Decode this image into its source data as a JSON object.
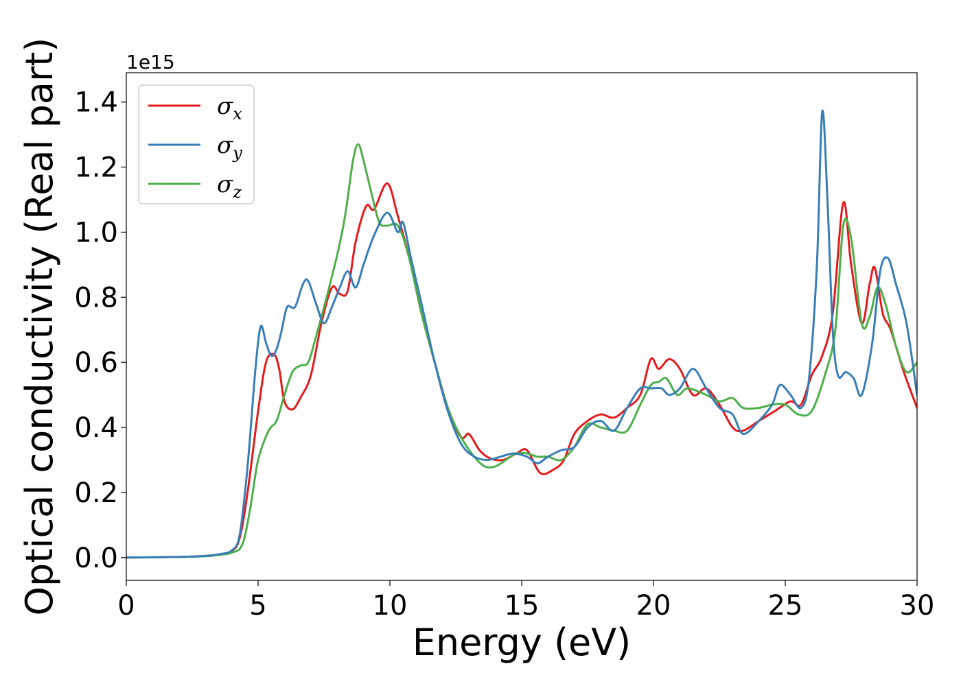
{
  "chart_data": {
    "type": "line",
    "xlabel": "Energy (eV)",
    "ylabel": "Optical conductivity (Real part)",
    "y_offset_text": "1e15",
    "xlim": [
      0,
      30
    ],
    "ylim": [
      -0.07,
      1.49
    ],
    "x_ticks": [
      0,
      5,
      10,
      15,
      20,
      25,
      30
    ],
    "x_tick_labels": [
      "0",
      "5",
      "10",
      "15",
      "20",
      "25",
      "30"
    ],
    "y_ticks": [
      0.0,
      0.2,
      0.4,
      0.6,
      0.8,
      1.0,
      1.2,
      1.4
    ],
    "y_tick_labels": [
      "0.0",
      "0.2",
      "0.4",
      "0.6",
      "0.8",
      "1.0",
      "1.2",
      "1.4"
    ],
    "grid": false,
    "legend_position": "top-left",
    "series": [
      {
        "name": "σx",
        "symbol": "σ",
        "subscript": "x",
        "color": "#e41a1c",
        "x": [
          0,
          2,
          3,
          3.5,
          4,
          4.3,
          4.6,
          5,
          5.3,
          5.6,
          5.8,
          6,
          6.3,
          6.6,
          7,
          7.4,
          7.8,
          8.1,
          8.4,
          8.7,
          9.1,
          9.4,
          9.9,
          10.3,
          10.8,
          11.2,
          11.7,
          12.2,
          12.7,
          13,
          13.4,
          13.8,
          14.3,
          14.8,
          15.2,
          15.7,
          16.2,
          16.6,
          17,
          17.5,
          18,
          18.5,
          19,
          19.5,
          19.9,
          20.2,
          20.6,
          21,
          21.5,
          22,
          22.5,
          23,
          23.4,
          24,
          24.6,
          25.2,
          25.6,
          26,
          26.4,
          26.8,
          27.2,
          27.5,
          27.9,
          28.2,
          28.4,
          28.7,
          29,
          29.5,
          30
        ],
        "y": [
          0,
          0.002,
          0.005,
          0.01,
          0.02,
          0.06,
          0.2,
          0.45,
          0.6,
          0.625,
          0.58,
          0.48,
          0.455,
          0.49,
          0.56,
          0.72,
          0.83,
          0.81,
          0.82,
          0.97,
          1.08,
          1.07,
          1.15,
          1.05,
          0.9,
          0.75,
          0.6,
          0.46,
          0.37,
          0.38,
          0.33,
          0.305,
          0.3,
          0.32,
          0.33,
          0.26,
          0.27,
          0.3,
          0.38,
          0.42,
          0.44,
          0.43,
          0.46,
          0.5,
          0.61,
          0.58,
          0.61,
          0.58,
          0.5,
          0.52,
          0.47,
          0.4,
          0.39,
          0.42,
          0.45,
          0.48,
          0.47,
          0.56,
          0.62,
          0.75,
          1.09,
          0.9,
          0.72,
          0.84,
          0.89,
          0.75,
          0.7,
          0.57,
          0.46
        ]
      },
      {
        "name": "σy",
        "symbol": "σ",
        "subscript": "y",
        "color": "#377eb8",
        "x": [
          0,
          2,
          3,
          3.5,
          4,
          4.3,
          4.6,
          4.9,
          5.1,
          5.3,
          5.5,
          5.7,
          5.9,
          6.1,
          6.4,
          6.7,
          6.9,
          7.2,
          7.5,
          7.8,
          8.1,
          8.4,
          8.7,
          9,
          9.4,
          9.9,
          10.3,
          10.5,
          10.8,
          11.2,
          11.7,
          12.2,
          12.7,
          13.2,
          13.7,
          14.2,
          14.7,
          15.2,
          15.6,
          16,
          16.5,
          17,
          17.5,
          18,
          18.5,
          19,
          19.5,
          19.9,
          20.3,
          20.6,
          21,
          21.5,
          22,
          22.5,
          23,
          23.4,
          24,
          24.5,
          24.8,
          25.2,
          25.6,
          25.9,
          26.2,
          26.4,
          26.6,
          26.8,
          27,
          27.3,
          27.6,
          27.9,
          28.3,
          28.6,
          28.9,
          29.2,
          29.6,
          30
        ],
        "y": [
          0,
          0.002,
          0.005,
          0.01,
          0.022,
          0.07,
          0.28,
          0.58,
          0.71,
          0.66,
          0.62,
          0.64,
          0.7,
          0.77,
          0.77,
          0.84,
          0.85,
          0.78,
          0.72,
          0.77,
          0.83,
          0.88,
          0.83,
          0.9,
          0.99,
          1.06,
          1.0,
          1.03,
          0.92,
          0.78,
          0.6,
          0.45,
          0.35,
          0.31,
          0.3,
          0.31,
          0.32,
          0.31,
          0.29,
          0.31,
          0.33,
          0.34,
          0.4,
          0.42,
          0.39,
          0.46,
          0.52,
          0.52,
          0.52,
          0.5,
          0.52,
          0.58,
          0.52,
          0.46,
          0.44,
          0.38,
          0.42,
          0.47,
          0.53,
          0.5,
          0.46,
          0.55,
          0.9,
          1.37,
          1.1,
          0.7,
          0.56,
          0.57,
          0.55,
          0.5,
          0.66,
          0.88,
          0.92,
          0.84,
          0.72,
          0.5
        ]
      },
      {
        "name": "σz",
        "symbol": "σ",
        "subscript": "z",
        "color": "#4daf4a",
        "x": [
          0,
          2,
          3,
          3.5,
          4,
          4.4,
          4.7,
          5,
          5.4,
          5.7,
          6,
          6.3,
          6.6,
          6.9,
          7.2,
          7.6,
          8,
          8.3,
          8.6,
          8.8,
          9,
          9.3,
          9.6,
          9.9,
          10.3,
          10.7,
          11.2,
          11.7,
          12.2,
          12.7,
          13.2,
          13.6,
          14,
          14.4,
          14.8,
          15.2,
          15.6,
          16,
          16.5,
          17,
          17.5,
          18,
          18.5,
          19,
          19.5,
          19.9,
          20.2,
          20.5,
          20.9,
          21.3,
          22,
          22.5,
          23,
          23.4,
          24,
          24.5,
          25,
          25.5,
          26,
          26.5,
          26.9,
          27.2,
          27.5,
          27.9,
          28.2,
          28.5,
          28.8,
          29.2,
          29.6,
          30
        ],
        "y": [
          0,
          0.002,
          0.004,
          0.008,
          0.015,
          0.04,
          0.15,
          0.3,
          0.39,
          0.42,
          0.5,
          0.57,
          0.59,
          0.6,
          0.68,
          0.8,
          0.93,
          1.05,
          1.22,
          1.27,
          1.22,
          1.12,
          1.03,
          1.02,
          1.02,
          0.93,
          0.75,
          0.6,
          0.46,
          0.37,
          0.31,
          0.28,
          0.28,
          0.3,
          0.32,
          0.32,
          0.31,
          0.31,
          0.3,
          0.34,
          0.41,
          0.4,
          0.39,
          0.39,
          0.47,
          0.53,
          0.54,
          0.55,
          0.5,
          0.52,
          0.5,
          0.48,
          0.49,
          0.46,
          0.46,
          0.47,
          0.47,
          0.44,
          0.45,
          0.56,
          0.7,
          1.02,
          0.98,
          0.72,
          0.74,
          0.83,
          0.78,
          0.65,
          0.57,
          0.6
        ]
      }
    ]
  }
}
